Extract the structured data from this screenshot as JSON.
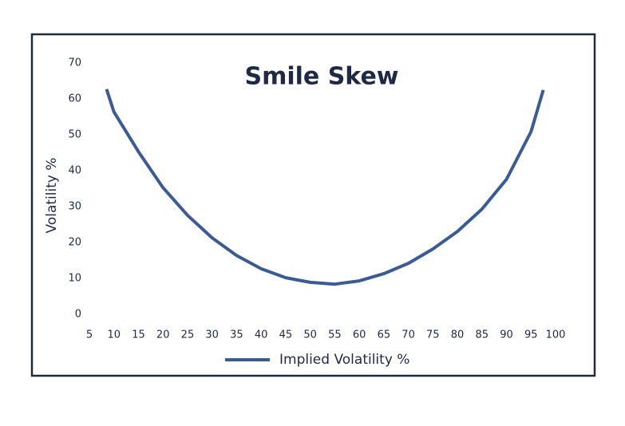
{
  "chart_data": {
    "type": "line",
    "title": "Smile Skew",
    "y_label": "Volatility %",
    "x": [
      8.5,
      10,
      15,
      20,
      25,
      30,
      35,
      40,
      45,
      50,
      55,
      60,
      65,
      70,
      75,
      80,
      85,
      90,
      95,
      97.5
    ],
    "series": [
      {
        "name": "Implied Volatility %",
        "color": "#3b5b96",
        "values": [
          62.7,
          56.4,
          45.3,
          35.3,
          27.6,
          21.3,
          16.4,
          12.7,
          10.2,
          8.9,
          8.4,
          9.3,
          11.3,
          14.2,
          18.2,
          23.1,
          29.3,
          37.6,
          50.9,
          62.5
        ]
      }
    ],
    "xlim": [
      5,
      100
    ],
    "xticks": [
      5,
      10,
      15,
      20,
      25,
      30,
      35,
      40,
      45,
      50,
      55,
      60,
      65,
      70,
      75,
      80,
      85,
      90,
      95,
      100
    ],
    "ylim": [
      0,
      70
    ],
    "yticks": [
      0,
      10,
      20,
      30,
      40,
      50,
      60,
      70
    ],
    "grid": false,
    "legend": "bottom"
  }
}
